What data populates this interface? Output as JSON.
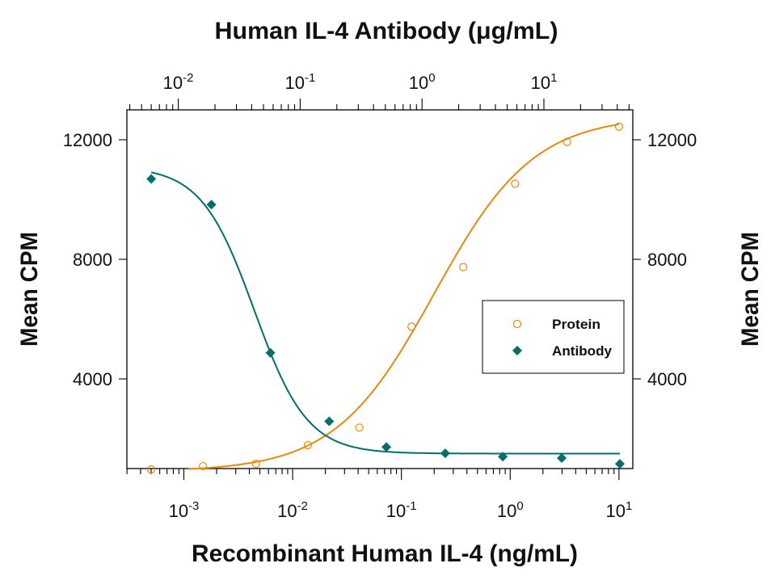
{
  "chart_data": {
    "type": "scatter",
    "top_title": "Human IL-4 Antibody (μg/mL)",
    "xlabel": "Recombinant Human IL-4 (ng/mL)",
    "ylabel_left": "Mean CPM",
    "ylabel_right": "Mean CPM",
    "x_scale": "log",
    "xlim_bottom": [
      0.0003,
      13.4
    ],
    "xlim_top": [
      0.0038,
      54
    ],
    "ylim": [
      1000,
      13000
    ],
    "bottom_ticks": [
      {
        "v": 0.001,
        "label": "10",
        "exp": "-3"
      },
      {
        "v": 0.01,
        "label": "10",
        "exp": "-2"
      },
      {
        "v": 0.1,
        "label": "10",
        "exp": "-1"
      },
      {
        "v": 1,
        "label": "10",
        "exp": "0"
      },
      {
        "v": 10,
        "label": "10",
        "exp": "1"
      }
    ],
    "top_ticks": [
      {
        "v": 0.01,
        "label": "10",
        "exp": "-2"
      },
      {
        "v": 0.1,
        "label": "10",
        "exp": "-1"
      },
      {
        "v": 1,
        "label": "10",
        "exp": "0"
      },
      {
        "v": 10,
        "label": "10",
        "exp": "1"
      }
    ],
    "y_ticks": [
      4000,
      8000,
      12000
    ],
    "grid": false,
    "legend_placement": "center-right",
    "series": [
      {
        "name": "Protein",
        "axis": "bottom",
        "marker": "open-circle",
        "color": "#e8890c",
        "x": [
          0.0005,
          0.0015,
          0.0046,
          0.0138,
          0.041,
          0.124,
          0.37,
          1.11,
          3.33,
          10
        ],
        "y": [
          970,
          1080,
          1160,
          1780,
          2370,
          5750,
          7740,
          10530,
          11930,
          12440
        ]
      },
      {
        "name": "Antibody",
        "axis": "top",
        "marker": "filled-diamond",
        "color": "#007068",
        "x": [
          0.006,
          0.0187,
          0.057,
          0.173,
          0.51,
          1.55,
          4.6,
          14,
          42
        ],
        "y": [
          10690,
          9830,
          4870,
          2580,
          1720,
          1510,
          1400,
          1350,
          1160
        ]
      }
    ]
  }
}
